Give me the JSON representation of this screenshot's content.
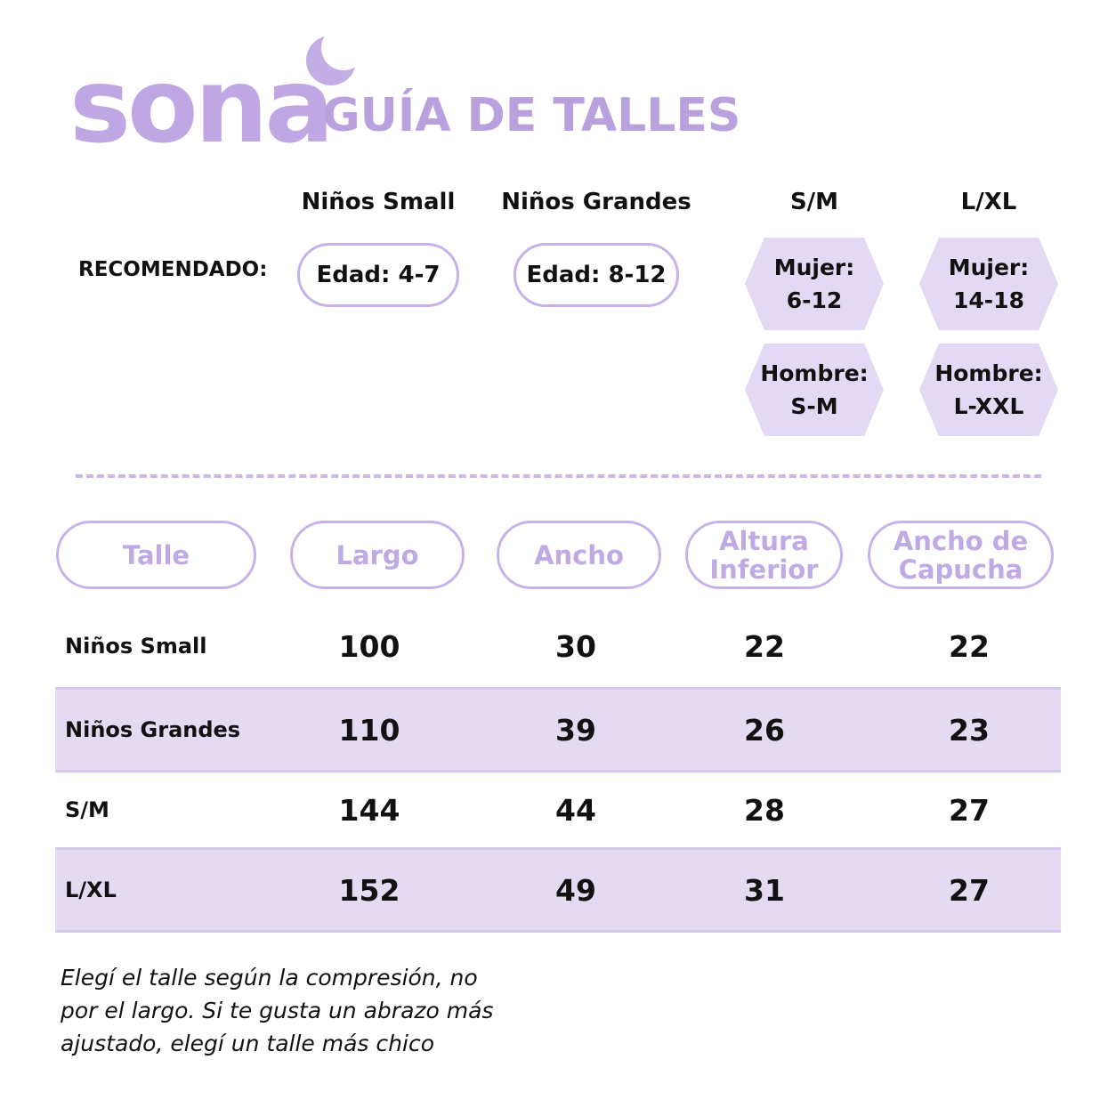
{
  "header": {
    "brand": "sona",
    "title": "GUÍA DE TALLES"
  },
  "recommended": {
    "label": "RECOMENDADO:",
    "columns": [
      {
        "name": "Niños Small",
        "badges": [
          [
            "Edad: 4-7"
          ]
        ]
      },
      {
        "name": "Niños Grandes",
        "badges": [
          [
            "Edad: 8-12"
          ]
        ]
      },
      {
        "name": "S/M",
        "badges": [
          [
            "Mujer:",
            "6-12"
          ],
          [
            "Hombre:",
            "S-M"
          ]
        ]
      },
      {
        "name": "L/XL",
        "badges": [
          [
            "Mujer:",
            "14-18"
          ],
          [
            "Hombre:",
            "L-XXL"
          ]
        ]
      }
    ]
  },
  "table": {
    "headers": [
      "Talle",
      "Largo",
      "Ancho",
      "Altura Inferior",
      "Ancho de Capucha"
    ],
    "rows": [
      [
        "Niños Small",
        100,
        30,
        22,
        22
      ],
      [
        "Niños Grandes",
        110,
        39,
        26,
        23
      ],
      [
        "S/M",
        144,
        44,
        28,
        27
      ],
      [
        "L/XL",
        152,
        49,
        31,
        27
      ]
    ]
  },
  "note": {
    "lines": [
      "Elegí el talle según la compresión, no",
      "por el largo. Si te gusta un abrazo más",
      "ajustado, elegí un talle más chico"
    ]
  }
}
